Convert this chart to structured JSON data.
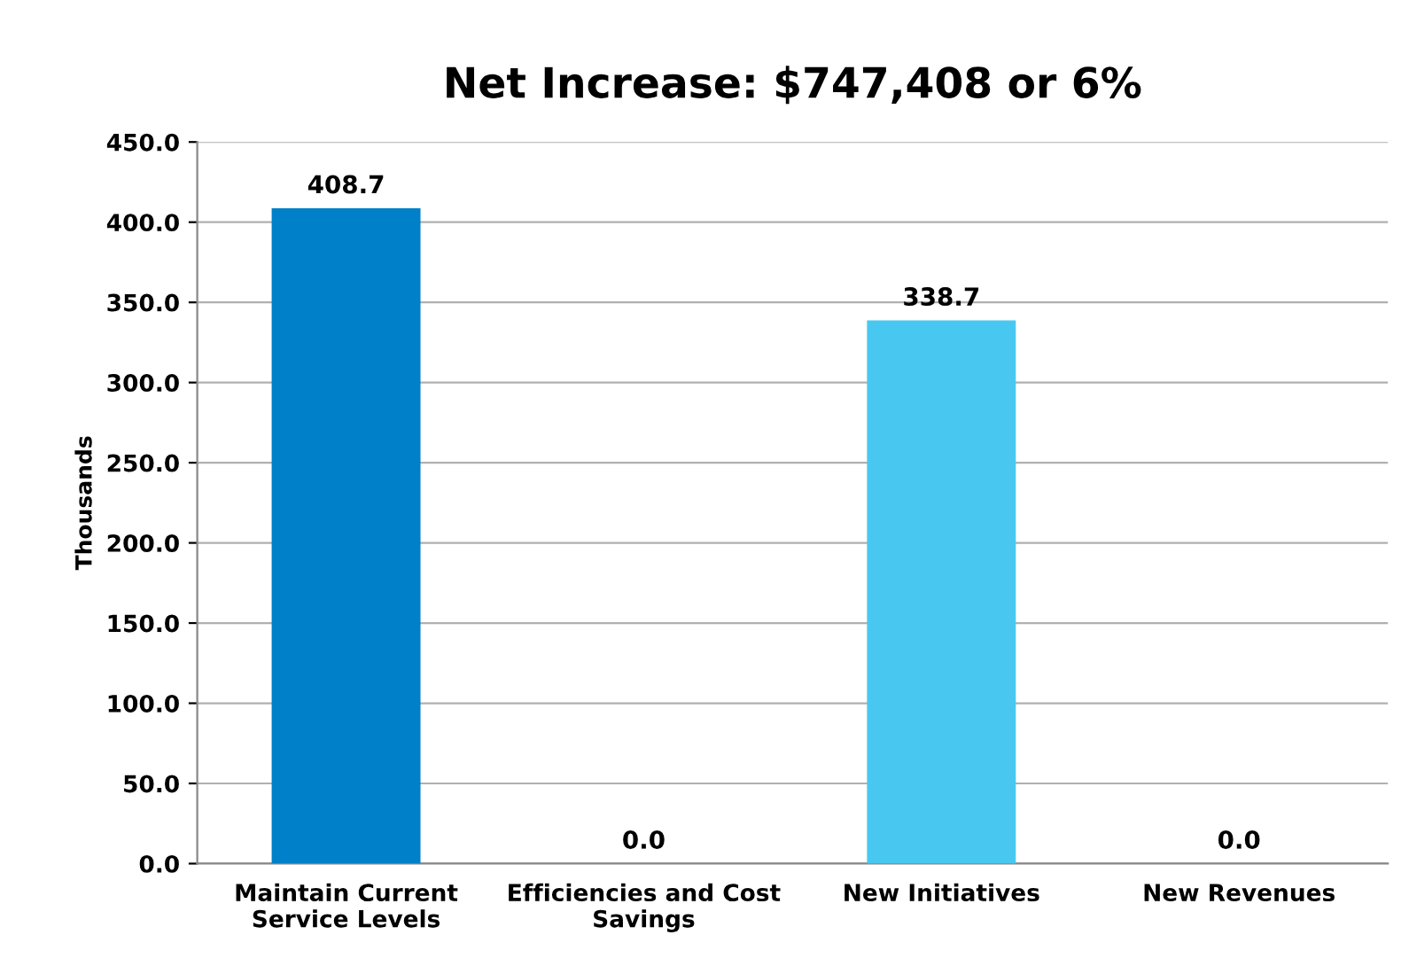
{
  "chart_data": {
    "type": "bar",
    "title": "Net Increase: $747,408 or 6%",
    "ylabel": "Thousands",
    "categories": [
      "Maintain Current\nService Levels",
      "Efficiencies and Cost\nSavings",
      "New Initiatives",
      "New Revenues"
    ],
    "values": [
      408.7,
      0.0,
      338.7,
      0.0
    ],
    "colors": [
      "#0080c8",
      "#0080c8",
      "#48c8f0",
      "#48c8f0"
    ],
    "value_labels": [
      "408.7",
      "0.0",
      "338.7",
      "0.0"
    ],
    "ylim": [
      0,
      450
    ],
    "yticks": [
      {
        "value": 0,
        "label": "0.0"
      },
      {
        "value": 50,
        "label": "50.0"
      },
      {
        "value": 100,
        "label": "100.0"
      },
      {
        "value": 150,
        "label": "150.0"
      },
      {
        "value": 200,
        "label": "200.0"
      },
      {
        "value": 250,
        "label": "250.0"
      },
      {
        "value": 300,
        "label": "300.0"
      },
      {
        "value": 350,
        "label": "350.0"
      },
      {
        "value": 400,
        "label": "400.0"
      },
      {
        "value": 450,
        "label": "450.0"
      }
    ],
    "grid": "y"
  }
}
